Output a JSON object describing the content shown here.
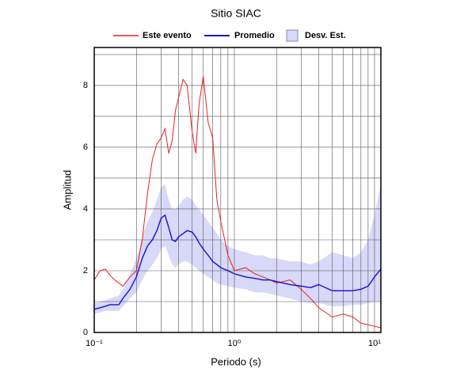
{
  "chart_data": {
    "type": "line",
    "title": "Sitio SIAC",
    "x_label": "Periodo (s)",
    "y_label": "Amplitud",
    "x_log": true,
    "xlim": [
      0.1,
      11.1
    ],
    "ylim": [
      0,
      9.23
    ],
    "xticks": [
      {
        "value": 0.1,
        "label": "10⁻¹"
      },
      {
        "value": 1,
        "label": "10⁰"
      },
      {
        "value": 10,
        "label": "10¹"
      }
    ],
    "x_minor_ticks": [
      0.2,
      0.3,
      0.4,
      0.5,
      0.6,
      0.7,
      0.8,
      0.9,
      2,
      3,
      4,
      5,
      6,
      7,
      8,
      9
    ],
    "yticks": [
      0,
      2,
      4,
      6,
      8
    ],
    "y_minor_ticks": [
      1,
      3,
      5,
      7,
      9
    ],
    "grid": true,
    "legend": "top",
    "x": [
      0.1,
      0.11,
      0.12,
      0.13,
      0.14,
      0.15,
      0.16,
      0.18,
      0.2,
      0.22,
      0.24,
      0.26,
      0.28,
      0.3,
      0.32,
      0.34,
      0.36,
      0.38,
      0.4,
      0.43,
      0.46,
      0.5,
      0.53,
      0.56,
      0.6,
      0.65,
      0.7,
      0.75,
      0.8,
      0.9,
      1,
      1.2,
      1.4,
      1.6,
      1.8,
      2,
      2.5,
      3,
      3.5,
      4,
      5,
      6,
      7,
      8,
      9,
      10,
      11.1
    ],
    "band": {
      "name": "Desv. Est.",
      "color": "#d8d8f8",
      "upper": [
        0.95,
        1.0,
        1.05,
        1.1,
        1.15,
        1.2,
        1.4,
        1.9,
        2.4,
        3.1,
        3.6,
        3.9,
        4.3,
        4.7,
        4.8,
        4.3,
        4.0,
        4.0,
        4.1,
        4.3,
        4.4,
        4.3,
        4.1,
        4.0,
        3.8,
        3.6,
        3.4,
        3.2,
        3.0,
        2.8,
        2.7,
        2.6,
        2.5,
        2.5,
        2.4,
        2.4,
        2.3,
        2.3,
        2.2,
        2.3,
        2.6,
        2.5,
        2.4,
        2.6,
        3.0,
        3.8,
        4.8
      ],
      "lower": [
        0.6,
        0.65,
        0.7,
        0.7,
        0.7,
        0.7,
        0.85,
        1.1,
        1.3,
        1.7,
        2.0,
        2.2,
        2.4,
        2.7,
        2.8,
        2.5,
        2.2,
        2.1,
        2.2,
        2.3,
        2.3,
        2.2,
        2.1,
        2.0,
        1.9,
        1.8,
        1.7,
        1.6,
        1.55,
        1.5,
        1.45,
        1.4,
        1.3,
        1.3,
        1.25,
        1.2,
        1.1,
        1.0,
        0.95,
        0.95,
        0.85,
        0.85,
        0.9,
        0.9,
        0.95,
        1.0,
        1.0
      ]
    },
    "series": [
      {
        "name": "Este evento",
        "color": "#e8201c",
        "values": [
          1.7,
          2.0,
          2.05,
          1.85,
          1.7,
          1.6,
          1.5,
          1.8,
          2.0,
          3.0,
          4.5,
          5.6,
          6.1,
          6.3,
          6.6,
          5.8,
          6.2,
          7.2,
          7.6,
          8.2,
          8.0,
          6.5,
          5.8,
          7.4,
          8.3,
          6.8,
          6.3,
          4.3,
          3.6,
          2.5,
          2.0,
          2.1,
          1.9,
          1.8,
          1.7,
          1.6,
          1.7,
          1.4,
          1.1,
          0.8,
          0.5,
          0.6,
          0.5,
          0.3,
          0.25,
          0.2,
          0.15
        ]
      },
      {
        "name": "Promedio",
        "color": "#1010d8",
        "values": [
          0.75,
          0.8,
          0.85,
          0.9,
          0.9,
          0.9,
          1.1,
          1.4,
          1.8,
          2.4,
          2.8,
          3.0,
          3.3,
          3.7,
          3.8,
          3.4,
          3.0,
          2.95,
          3.1,
          3.2,
          3.3,
          3.25,
          3.1,
          2.9,
          2.7,
          2.5,
          2.3,
          2.2,
          2.1,
          2.0,
          1.9,
          1.8,
          1.75,
          1.7,
          1.7,
          1.65,
          1.55,
          1.5,
          1.45,
          1.55,
          1.35,
          1.35,
          1.35,
          1.4,
          1.5,
          1.8,
          2.05
        ]
      }
    ]
  }
}
